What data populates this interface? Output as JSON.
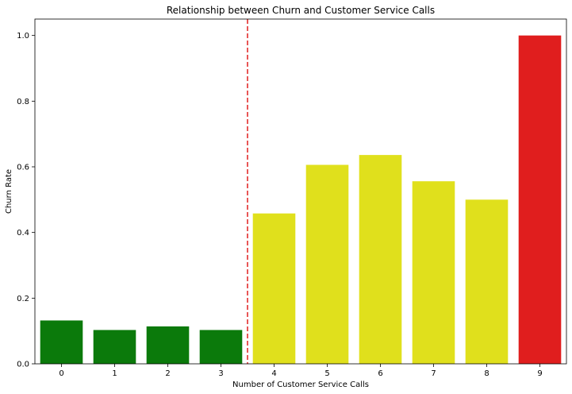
{
  "chart_data": {
    "type": "bar",
    "title": "Relationship between Churn and Customer Service Calls",
    "xlabel": "Number of Customer Service Calls",
    "ylabel": "Churn Rate",
    "categories": [
      "0",
      "1",
      "2",
      "3",
      "4",
      "5",
      "6",
      "7",
      "8",
      "9"
    ],
    "values": [
      0.132,
      0.103,
      0.114,
      0.103,
      0.458,
      0.606,
      0.636,
      0.556,
      0.5,
      1.0
    ],
    "bar_colors": [
      "#0b7a0b",
      "#0b7a0b",
      "#0b7a0b",
      "#0b7a0b",
      "#e0e01c",
      "#e0e01c",
      "#e0e01c",
      "#e0e01c",
      "#e0e01c",
      "#e01e1e"
    ],
    "ylim": [
      0,
      1.05
    ],
    "yticks": [
      "0.0",
      "0.2",
      "0.4",
      "0.6",
      "0.8",
      "1.0"
    ],
    "ytick_values": [
      0,
      0.2,
      0.4,
      0.6,
      0.8,
      1.0
    ],
    "reference_line": {
      "x": 3.5,
      "color": "#e01e1e",
      "style": "dashed"
    },
    "grid": false,
    "legend": "none"
  }
}
